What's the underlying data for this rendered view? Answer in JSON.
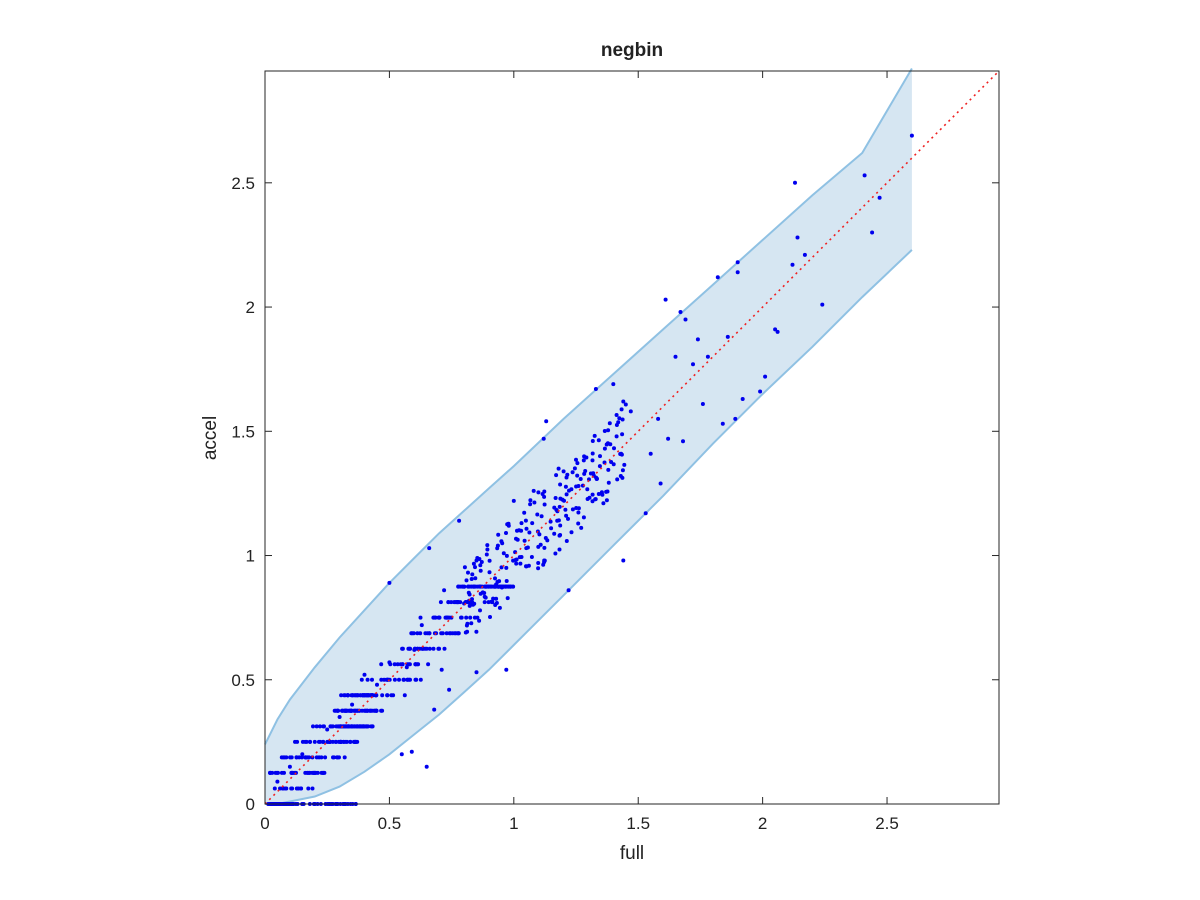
{
  "chart_data": {
    "type": "scatter",
    "title": "negbin",
    "xlabel": "full",
    "ylabel": "accel",
    "xlim": [
      0,
      2.95
    ],
    "ylim": [
      0,
      2.95
    ],
    "xticks": [
      0,
      0.5,
      1,
      1.5,
      2,
      2.5
    ],
    "xtick_labels": [
      "0",
      "0.5",
      "1",
      "1.5",
      "2",
      "2.5"
    ],
    "yticks": [
      0,
      0.5,
      1,
      1.5,
      2,
      2.5
    ],
    "ytick_labels": [
      "0",
      "0.5",
      "1",
      "1.5",
      "2",
      "2.5"
    ],
    "grid": false,
    "colors": {
      "points": "#0000ee",
      "band_fill": "#d6e6f2",
      "band_edge": "#8fc1e3",
      "reference_line": "#ee2222"
    },
    "reference_line": {
      "style": "dotted",
      "x": [
        0,
        2.95
      ],
      "y": [
        0,
        2.95
      ]
    },
    "band": {
      "x": [
        0,
        0.05,
        0.1,
        0.2,
        0.3,
        0.4,
        0.5,
        0.6,
        0.7,
        0.8,
        0.9,
        1.0,
        1.2,
        1.4,
        1.6,
        1.8,
        2.0,
        2.2,
        2.4,
        2.6
      ],
      "upper": [
        0.24,
        0.34,
        0.42,
        0.55,
        0.67,
        0.78,
        0.89,
        0.99,
        1.09,
        1.18,
        1.27,
        1.36,
        1.55,
        1.73,
        1.91,
        2.09,
        2.27,
        2.45,
        2.62,
        2.96
      ],
      "lower": [
        0.0,
        0.0,
        0.01,
        0.03,
        0.07,
        0.13,
        0.2,
        0.28,
        0.36,
        0.45,
        0.54,
        0.64,
        0.84,
        1.04,
        1.24,
        1.45,
        1.65,
        1.84,
        2.04,
        2.23
      ]
    },
    "points": [
      {
        "x": 2.6,
        "y": 2.69
      },
      {
        "x": 2.13,
        "y": 2.5
      },
      {
        "x": 2.41,
        "y": 2.53
      },
      {
        "x": 2.47,
        "y": 2.44
      },
      {
        "x": 2.44,
        "y": 2.3
      },
      {
        "x": 2.14,
        "y": 2.28
      },
      {
        "x": 2.17,
        "y": 2.21
      },
      {
        "x": 2.12,
        "y": 2.17
      },
      {
        "x": 1.9,
        "y": 2.18
      },
      {
        "x": 1.9,
        "y": 2.14
      },
      {
        "x": 1.82,
        "y": 2.12
      },
      {
        "x": 2.24,
        "y": 2.01
      },
      {
        "x": 2.05,
        "y": 1.91
      },
      {
        "x": 2.06,
        "y": 1.9
      },
      {
        "x": 1.61,
        "y": 2.03
      },
      {
        "x": 1.67,
        "y": 1.98
      },
      {
        "x": 1.69,
        "y": 1.95
      },
      {
        "x": 1.78,
        "y": 1.8
      },
      {
        "x": 1.86,
        "y": 1.88
      },
      {
        "x": 1.74,
        "y": 1.87
      },
      {
        "x": 1.72,
        "y": 1.77
      },
      {
        "x": 1.65,
        "y": 1.8
      },
      {
        "x": 1.92,
        "y": 1.63
      },
      {
        "x": 2.01,
        "y": 1.72
      },
      {
        "x": 1.99,
        "y": 1.66
      },
      {
        "x": 1.89,
        "y": 1.55
      },
      {
        "x": 1.84,
        "y": 1.53
      },
      {
        "x": 1.76,
        "y": 1.61
      },
      {
        "x": 1.58,
        "y": 1.55
      },
      {
        "x": 1.62,
        "y": 1.47
      },
      {
        "x": 1.68,
        "y": 1.46
      },
      {
        "x": 1.55,
        "y": 1.41
      },
      {
        "x": 1.47,
        "y": 1.58
      },
      {
        "x": 1.44,
        "y": 1.62
      },
      {
        "x": 1.4,
        "y": 1.69
      },
      {
        "x": 1.33,
        "y": 1.67
      },
      {
        "x": 1.43,
        "y": 1.32
      },
      {
        "x": 1.53,
        "y": 1.17
      },
      {
        "x": 1.59,
        "y": 1.29
      },
      {
        "x": 1.44,
        "y": 0.98
      },
      {
        "x": 1.31,
        "y": 1.33
      },
      {
        "x": 1.26,
        "y": 1.28
      },
      {
        "x": 1.36,
        "y": 1.21
      },
      {
        "x": 1.21,
        "y": 1.16
      },
      {
        "x": 1.13,
        "y": 1.54
      },
      {
        "x": 1.12,
        "y": 1.47
      },
      {
        "x": 1.0,
        "y": 1.22
      },
      {
        "x": 0.98,
        "y": 1.12
      },
      {
        "x": 1.05,
        "y": 1.03
      },
      {
        "x": 0.97,
        "y": 0.95
      },
      {
        "x": 1.15,
        "y": 1.11
      },
      {
        "x": 1.08,
        "y": 1.26
      },
      {
        "x": 1.18,
        "y": 1.35
      },
      {
        "x": 1.22,
        "y": 0.86
      },
      {
        "x": 0.85,
        "y": 0.98
      },
      {
        "x": 0.78,
        "y": 1.14
      },
      {
        "x": 0.81,
        "y": 0.9
      },
      {
        "x": 0.72,
        "y": 0.86
      },
      {
        "x": 0.66,
        "y": 1.03
      },
      {
        "x": 0.63,
        "y": 0.72
      },
      {
        "x": 0.6,
        "y": 0.62
      },
      {
        "x": 0.57,
        "y": 0.55
      },
      {
        "x": 0.5,
        "y": 0.89
      },
      {
        "x": 0.5,
        "y": 0.57
      },
      {
        "x": 0.45,
        "y": 0.48
      },
      {
        "x": 0.4,
        "y": 0.52
      },
      {
        "x": 0.35,
        "y": 0.4
      },
      {
        "x": 0.3,
        "y": 0.35
      },
      {
        "x": 0.25,
        "y": 0.3
      },
      {
        "x": 0.2,
        "y": 0.25
      },
      {
        "x": 0.15,
        "y": 0.2
      },
      {
        "x": 0.1,
        "y": 0.15
      },
      {
        "x": 0.05,
        "y": 0.09
      },
      {
        "x": 0.03,
        "y": 0.0
      },
      {
        "x": 0.71,
        "y": 0.54
      },
      {
        "x": 0.85,
        "y": 0.53
      },
      {
        "x": 0.97,
        "y": 0.54
      },
      {
        "x": 0.65,
        "y": 0.15
      },
      {
        "x": 0.55,
        "y": 0.2
      },
      {
        "x": 0.59,
        "y": 0.21
      },
      {
        "x": 0.68,
        "y": 0.38
      },
      {
        "x": 0.74,
        "y": 0.46
      }
    ],
    "clusters": [
      {
        "n": 240,
        "x0": 0.02,
        "x1": 0.45,
        "level_step": 0.0625,
        "lvl_min": 0,
        "lvl_max": 7,
        "spread": 0.12
      },
      {
        "n": 260,
        "x0": 0.3,
        "x1": 1.0,
        "level_step": 0.0625,
        "lvl_min": 4,
        "lvl_max": 14,
        "spread": 0.1
      },
      {
        "n": 220,
        "x0": 0.8,
        "x1": 1.45,
        "level_step": 0.0,
        "lvl_min": 0,
        "lvl_max": 0,
        "spread": 0.16
      },
      {
        "n": 50,
        "x0": 0.0,
        "x1": 0.38,
        "level_step": 0.0,
        "lvl_min": 0,
        "lvl_max": 0,
        "spread": 0.0
      }
    ]
  }
}
